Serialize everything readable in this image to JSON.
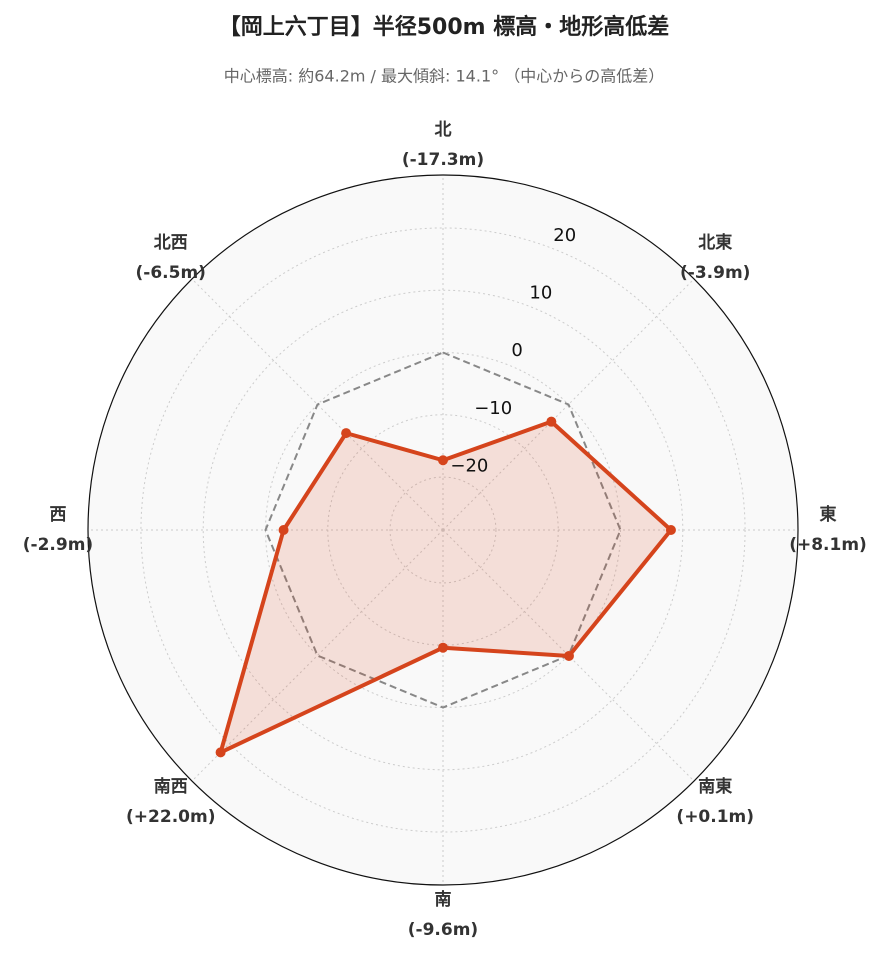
{
  "chart_data": {
    "type": "radar",
    "title": "【岡上六丁目】半径500m 標高・地形高低差",
    "subtitle": "中心標高: 約64.2m / 最大傾斜: 14.1° （中心からの高低差）",
    "categories": [
      "北",
      "北東",
      "東",
      "南東",
      "南",
      "南西",
      "西",
      "北西"
    ],
    "values": [
      -17.3,
      -3.9,
      8.1,
      0.1,
      -9.6,
      22.0,
      -2.9,
      -6.5
    ],
    "value_labels": [
      "(-17.3m)",
      "(-3.9m)",
      "(+8.1m)",
      "(+0.1m)",
      "(-9.6m)",
      "(+22.0m)",
      "(-2.9m)",
      "(-6.5m)"
    ],
    "color": "#d5441c",
    "rlim": [
      -28.5,
      28.5
    ],
    "rticks": [
      {
        "value": -20,
        "label": "−20"
      },
      {
        "value": -10,
        "label": "−10"
      },
      0,
      10,
      20
    ],
    "reference_line": {
      "value": 0,
      "color": "#888888",
      "style": "dashed"
    },
    "grid": true
  }
}
